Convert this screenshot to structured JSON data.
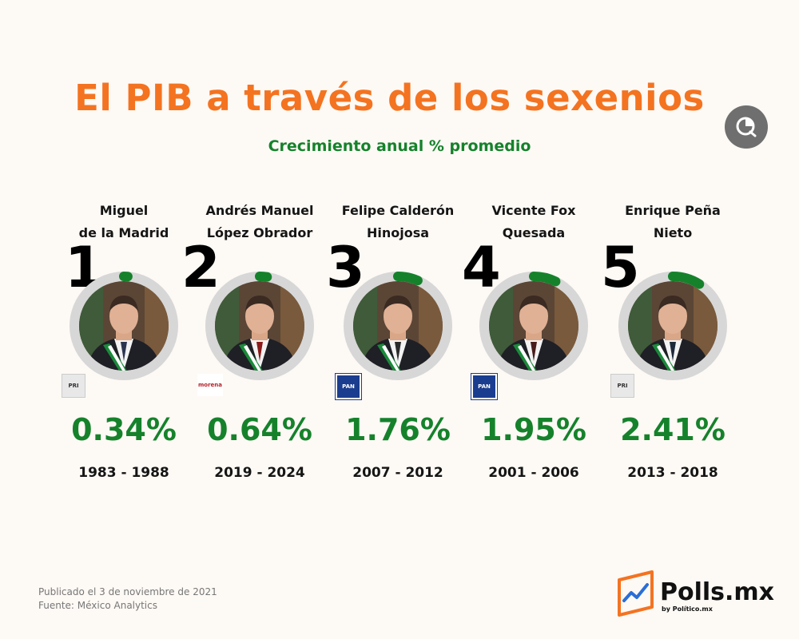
{
  "header": {
    "title": "El PIB a través de los sexenios",
    "subtitle": "Crecimiento anual % promedio"
  },
  "colors": {
    "title": "#f47320",
    "accent_green": "#15822b",
    "ring_track": "#d7d7d7",
    "background": "#fdf9f5"
  },
  "corner_icon": "chart-bubble-icon",
  "presidents": [
    {
      "rank": "1",
      "name_line1": "Miguel",
      "name_line2": "de la Madrid",
      "party": "PRI",
      "value_label": "0.34%",
      "period": "1983 - 1988",
      "tie_color": "#2c3550"
    },
    {
      "rank": "2",
      "name_line1": "Andrés Manuel",
      "name_line2": "López Obrador",
      "party": "morena",
      "value_label": "0.64%",
      "period": "2019 - 2024",
      "tie_color": "#8b1a1a"
    },
    {
      "rank": "3",
      "name_line1": "Felipe Calderón",
      "name_line2": "Hinojosa",
      "party": "PAN",
      "value_label": "1.76%",
      "period": "2007 - 2012",
      "tie_color": "#2b2b2b"
    },
    {
      "rank": "4",
      "name_line1": "Vicente Fox",
      "name_line2": "Quesada",
      "party": "PAN",
      "value_label": "1.95%",
      "period": "2001 - 2006",
      "tie_color": "#4a1c1c"
    },
    {
      "rank": "5",
      "name_line1": "Enrique Peña",
      "name_line2": "Nieto",
      "party": "PRI",
      "value_label": "2.41%",
      "period": "2013 - 2018",
      "tie_color": "#1e2a3a"
    }
  ],
  "chart_data": {
    "type": "bar",
    "title": "El PIB a través de los sexenios",
    "subtitle": "Crecimiento anual % promedio",
    "categories": [
      "Miguel de la Madrid",
      "Andrés Manuel López Obrador",
      "Felipe Calderón Hinojosa",
      "Vicente Fox Quesada",
      "Enrique Peña Nieto"
    ],
    "periods": [
      "1983 - 1988",
      "2019 - 2024",
      "2007 - 2012",
      "2001 - 2006",
      "2013 - 2018"
    ],
    "values": [
      0.34,
      0.64,
      1.76,
      1.95,
      2.41
    ],
    "unit": "%",
    "ranks": [
      1,
      2,
      3,
      4,
      5
    ]
  },
  "footer": {
    "published": "Publicado el 3 de noviembre de 2021",
    "source": "Fuente: México Analytics",
    "brand": "Polls.mx",
    "brand_sub": "by Político.mx"
  }
}
